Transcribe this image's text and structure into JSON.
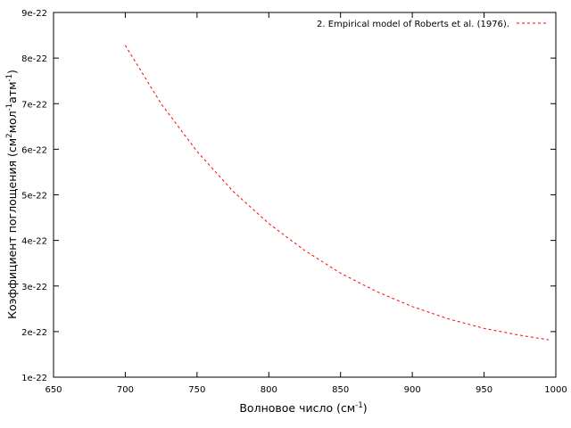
{
  "chart_data": {
    "type": "line",
    "title": "",
    "xlabel": {
      "base": "Волновое число (см",
      "sup": "-1",
      "tail": ")"
    },
    "ylabel": {
      "p1": "Коэффициент поглощения (см",
      "s1": "2",
      "p2": "мол",
      "s2": "-1",
      "p3": "атм",
      "s3": "-1",
      "p4": ")"
    },
    "xlim": [
      650,
      1000
    ],
    "ylim": [
      1e-22,
      9e-22
    ],
    "x_ticks": [
      650,
      700,
      750,
      800,
      850,
      900,
      950,
      1000
    ],
    "x_tick_labels": [
      "650",
      "700",
      "750",
      "800",
      "850",
      "900",
      "950",
      "1000"
    ],
    "y_ticks": [
      1e-22,
      2e-22,
      3e-22,
      4e-22,
      5e-22,
      6e-22,
      7e-22,
      8e-22,
      9e-22
    ],
    "y_tick_labels": [
      "1e-22",
      "2e-22",
      "3e-22",
      "4e-22",
      "5e-22",
      "6e-22",
      "7e-22",
      "8e-22",
      "9e-22"
    ],
    "grid": false,
    "legend_position": "top-right",
    "series": [
      {
        "name": "2. Empirical model of Roberts et al. (1976).",
        "color": "#ff0000",
        "dash": "dashed",
        "x": [
          700,
          725,
          750,
          775,
          800,
          825,
          850,
          875,
          900,
          925,
          950,
          975,
          995
        ],
        "y": [
          8.28e-22,
          7e-22,
          5.95e-22,
          5.08e-22,
          4.37e-22,
          3.78e-22,
          3.28e-22,
          2.88e-22,
          2.55e-22,
          2.28e-22,
          2.07e-22,
          1.92e-22,
          1.82e-22
        ]
      }
    ]
  }
}
